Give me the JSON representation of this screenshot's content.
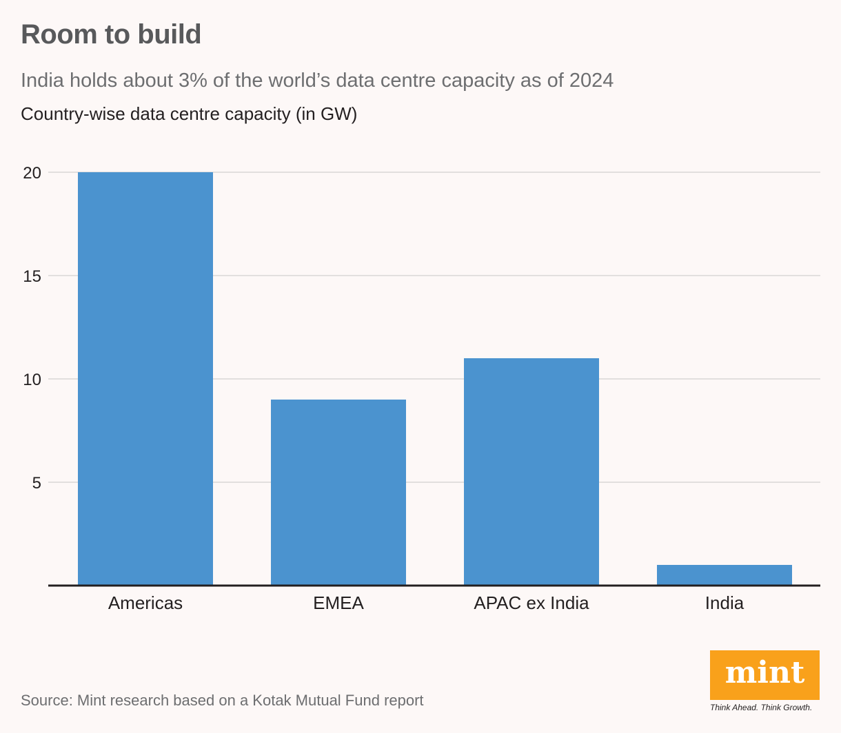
{
  "title": "Room to build",
  "subtitle": "India holds about 3% of the world’s data centre capacity as of 2024",
  "source": "Source: Mint research based on a Kotak Mutual Fund report",
  "logo": {
    "text": "mint",
    "tagline": "Think Ahead. Think Growth.",
    "color": "#f9a11b"
  },
  "chart_data": {
    "type": "bar",
    "title": "Room to build",
    "subtitle": "India holds about 3% of the world’s data centre capacity as of 2024",
    "ylabel": "Country-wise data centre capacity (in GW)",
    "categories": [
      "Americas",
      "EMEA",
      "APAC ex India",
      "India"
    ],
    "values": [
      20,
      9,
      11,
      1
    ],
    "ylim": [
      0,
      20
    ],
    "yticks": [
      5,
      10,
      15,
      20
    ],
    "grid": true,
    "bar_color": "#4b93cf"
  }
}
